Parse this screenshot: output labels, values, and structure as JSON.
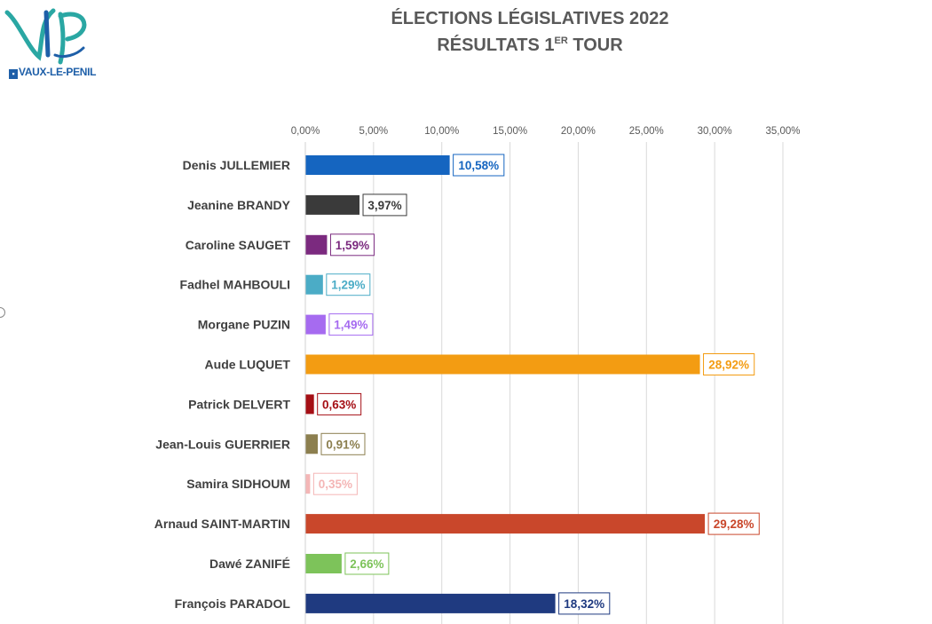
{
  "header": {
    "title_line1": "ÉLECTIONS LÉGISLATIVES 2022",
    "title_line2_main": "RÉSULTATS 1",
    "title_line2_sup": "ER",
    "title_line2_end": " TOUR",
    "logo_text": "VAUX-LE-PENIL",
    "logo_monogram": "VLP"
  },
  "chart_data": {
    "type": "bar",
    "orientation": "horizontal",
    "title": "ÉLECTIONS LÉGISLATIVES 2022 RÉSULTATS 1ER TOUR",
    "xlim": [
      0,
      35
    ],
    "xticks": [
      "0,00%",
      "5,00%",
      "10,00%",
      "15,00%",
      "20,00%",
      "25,00%",
      "30,00%",
      "35,00%"
    ],
    "xtick_values": [
      0,
      5,
      10,
      15,
      20,
      25,
      30,
      35
    ],
    "grid": true,
    "categories": [
      "Denis JULLEMIER",
      "Jeanine BRANDY",
      "Caroline SAUGET",
      "Fadhel MAHBOULI",
      "Morgane PUZIN",
      "Aude LUQUET",
      "Patrick DELVERT",
      "Jean-Louis GUERRIER",
      "Samira SIDHOUM",
      "Arnaud SAINT-MARTIN",
      "Dawé ZANIFÉ",
      "François PARADOL"
    ],
    "values": [
      10.58,
      3.97,
      1.59,
      1.29,
      1.49,
      28.92,
      0.63,
      0.91,
      0.35,
      29.28,
      2.66,
      18.32
    ],
    "labels": [
      "10,58%",
      "3,97%",
      "1,59%",
      "1,29%",
      "1,49%",
      "28,92%",
      "0,63%",
      "0,91%",
      "0,35%",
      "29,28%",
      "2,66%",
      "18,32%"
    ],
    "colors": [
      "#1565c0",
      "#3a3a3a",
      "#7b2a7f",
      "#4bacc6",
      "#a66bf0",
      "#f39c12",
      "#a50f15",
      "#8c7f4f",
      "#f4b6b6",
      "#c9472b",
      "#7dc35a",
      "#1f3a80"
    ]
  }
}
